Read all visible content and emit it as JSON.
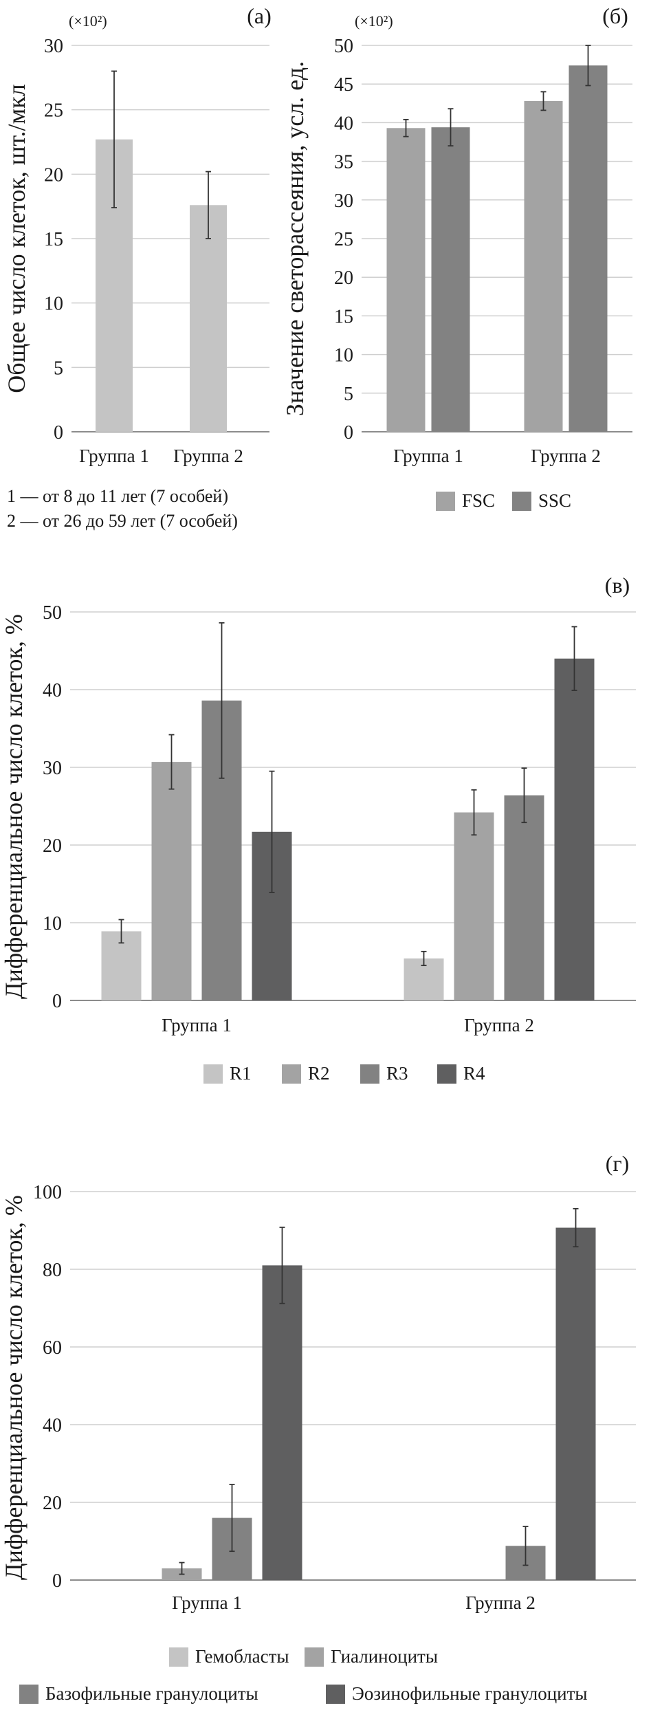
{
  "colors": {
    "c1": "#c4c4c4",
    "c2": "#a3a3a3",
    "c3": "#828282",
    "c4": "#5f5f60"
  },
  "chart_data": [
    {
      "id": "a",
      "type": "bar",
      "panel_label": "(а)",
      "multiplier": "(×10²)",
      "ylabel": "Общее число клеток, шт./мкл",
      "ylim": [
        0,
        30
      ],
      "yticks": [
        "0",
        "5",
        "10",
        "15",
        "20",
        "25",
        "30"
      ],
      "grid": true,
      "categories": [
        "Группа 1",
        "Группа 2"
      ],
      "series": [
        {
          "color": "c1",
          "values": [
            22.7,
            17.6
          ],
          "errors": [
            5.3,
            2.6
          ]
        }
      ],
      "notes": [
        "1 — от 8 до 11 лет (7 особей)",
        "2 — от 26 до 59 лет (7 особей)"
      ]
    },
    {
      "id": "b",
      "type": "bar",
      "panel_label": "(б)",
      "multiplier": "(×10²)",
      "ylabel": "Значение светорассеяния, усл. ед.",
      "ylim": [
        0,
        50
      ],
      "yticks": [
        "0",
        "5",
        "10",
        "15",
        "20",
        "25",
        "30",
        "35",
        "40",
        "45",
        "50"
      ],
      "grid": true,
      "categories": [
        "Группа 1",
        "Группа 2"
      ],
      "legend_position": "bottom",
      "series": [
        {
          "name": "FSC",
          "color": "c2",
          "values": [
            39.3,
            42.8
          ],
          "errors": [
            1.1,
            1.2
          ]
        },
        {
          "name": "SSC",
          "color": "c3",
          "values": [
            39.4,
            47.4
          ],
          "errors": [
            2.4,
            2.6
          ]
        }
      ]
    },
    {
      "id": "v",
      "type": "bar",
      "panel_label": "(в)",
      "ylabel": "Дифференциальное число клеток, %",
      "ylim": [
        0,
        50
      ],
      "yticks": [
        "0",
        "10",
        "20",
        "30",
        "40",
        "50"
      ],
      "grid": true,
      "categories": [
        "Группа 1",
        "Группа 2"
      ],
      "legend_position": "bottom",
      "series": [
        {
          "name": "R1",
          "color": "c1",
          "values": [
            8.9,
            5.4
          ],
          "errors": [
            1.5,
            0.9
          ]
        },
        {
          "name": "R2",
          "color": "c2",
          "values": [
            30.7,
            24.2
          ],
          "errors": [
            3.5,
            2.9
          ]
        },
        {
          "name": "R3",
          "color": "c3",
          "values": [
            38.6,
            26.4
          ],
          "errors": [
            10.0,
            3.5
          ]
        },
        {
          "name": "R4",
          "color": "c4",
          "values": [
            21.7,
            44.0
          ],
          "errors": [
            7.8,
            4.1
          ]
        }
      ]
    },
    {
      "id": "g",
      "type": "bar",
      "panel_label": "(г)",
      "ylabel": "Дифференциальное число клеток, %",
      "ylim": [
        0,
        100
      ],
      "yticks": [
        "0",
        "20",
        "40",
        "60",
        "80",
        "100"
      ],
      "grid": true,
      "categories": [
        "Группа 1",
        "Группа 2"
      ],
      "legend_position": "bottom",
      "series": [
        {
          "name": "Гемобласты",
          "color": "c1",
          "values": [
            0,
            0
          ],
          "errors": [
            0,
            0
          ]
        },
        {
          "name": "Гиалиноциты",
          "color": "c2",
          "values": [
            3.0,
            0
          ],
          "errors": [
            1.5,
            0
          ]
        },
        {
          "name": "Базофильные гранулоциты",
          "color": "c3",
          "values": [
            16.0,
            8.8
          ],
          "errors": [
            8.6,
            5.0
          ]
        },
        {
          "name": "Эозинофильные гранулоциты",
          "color": "c4",
          "values": [
            81.0,
            90.7
          ],
          "errors": [
            9.8,
            4.9
          ]
        }
      ]
    }
  ]
}
